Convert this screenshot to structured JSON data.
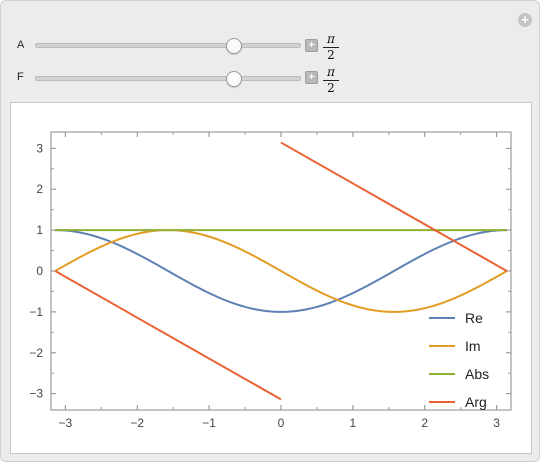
{
  "controls": [
    {
      "label": "A",
      "value_num": "π",
      "value_den": "2",
      "value": 1.5708,
      "min": -3.1416,
      "max": 3.1416
    },
    {
      "label": "F",
      "value_num": "π",
      "value_den": "2",
      "value": 1.5708,
      "min": -3.1416,
      "max": 3.1416
    }
  ],
  "corner_button": "+",
  "stepper_glyph": "+",
  "colors": {
    "re": "#5e81b5",
    "im": "#e19c24",
    "abs": "#8fb032",
    "arg": "#eb6235"
  },
  "chart_data": {
    "type": "line",
    "title": "",
    "xlabel": "",
    "ylabel": "",
    "xlim": [
      -3.2,
      3.2
    ],
    "ylim": [
      -3.4,
      3.4
    ],
    "xticks": [
      -3,
      -2,
      -1,
      0,
      1,
      2,
      3
    ],
    "yticks": [
      3,
      2,
      1,
      0,
      -1,
      -2,
      -3
    ],
    "xtick_labels": [
      "−3",
      "−2",
      "−1",
      "0",
      "1",
      "2",
      "3"
    ],
    "ytick_labels": [
      "3",
      "2",
      "1",
      "0",
      "−1",
      "−2",
      "−3"
    ],
    "domain": [
      -3.1416,
      3.1416
    ],
    "legend_position": "bottom-right",
    "series": [
      {
        "name": "Re",
        "key": "re"
      },
      {
        "name": "Im",
        "key": "im"
      },
      {
        "name": "Abs",
        "key": "abs"
      },
      {
        "name": "Arg",
        "key": "arg"
      }
    ]
  }
}
